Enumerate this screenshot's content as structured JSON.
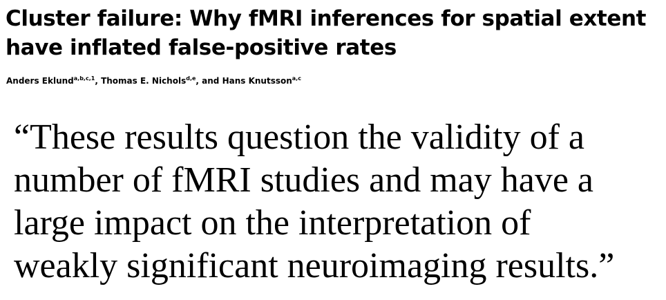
{
  "paper": {
    "title_line1": "Cluster failure: Why fMRI inferences for spatial extent",
    "title_line2": "have inflated false-positive rates",
    "authors": [
      {
        "name": "Anders Eklund",
        "affil": "a,b,c,1",
        "sep": ", "
      },
      {
        "name": "Thomas E. Nichols",
        "affil": "d,e",
        "sep": ", and "
      },
      {
        "name": "Hans Knutsson",
        "affil": "a,c",
        "sep": ""
      }
    ]
  },
  "quote": {
    "lines": [
      "“These results question the validity of a",
      "number of fMRI studies and may have a",
      "large impact on the interpretation of",
      "weakly significant neuroimaging results.”"
    ]
  }
}
